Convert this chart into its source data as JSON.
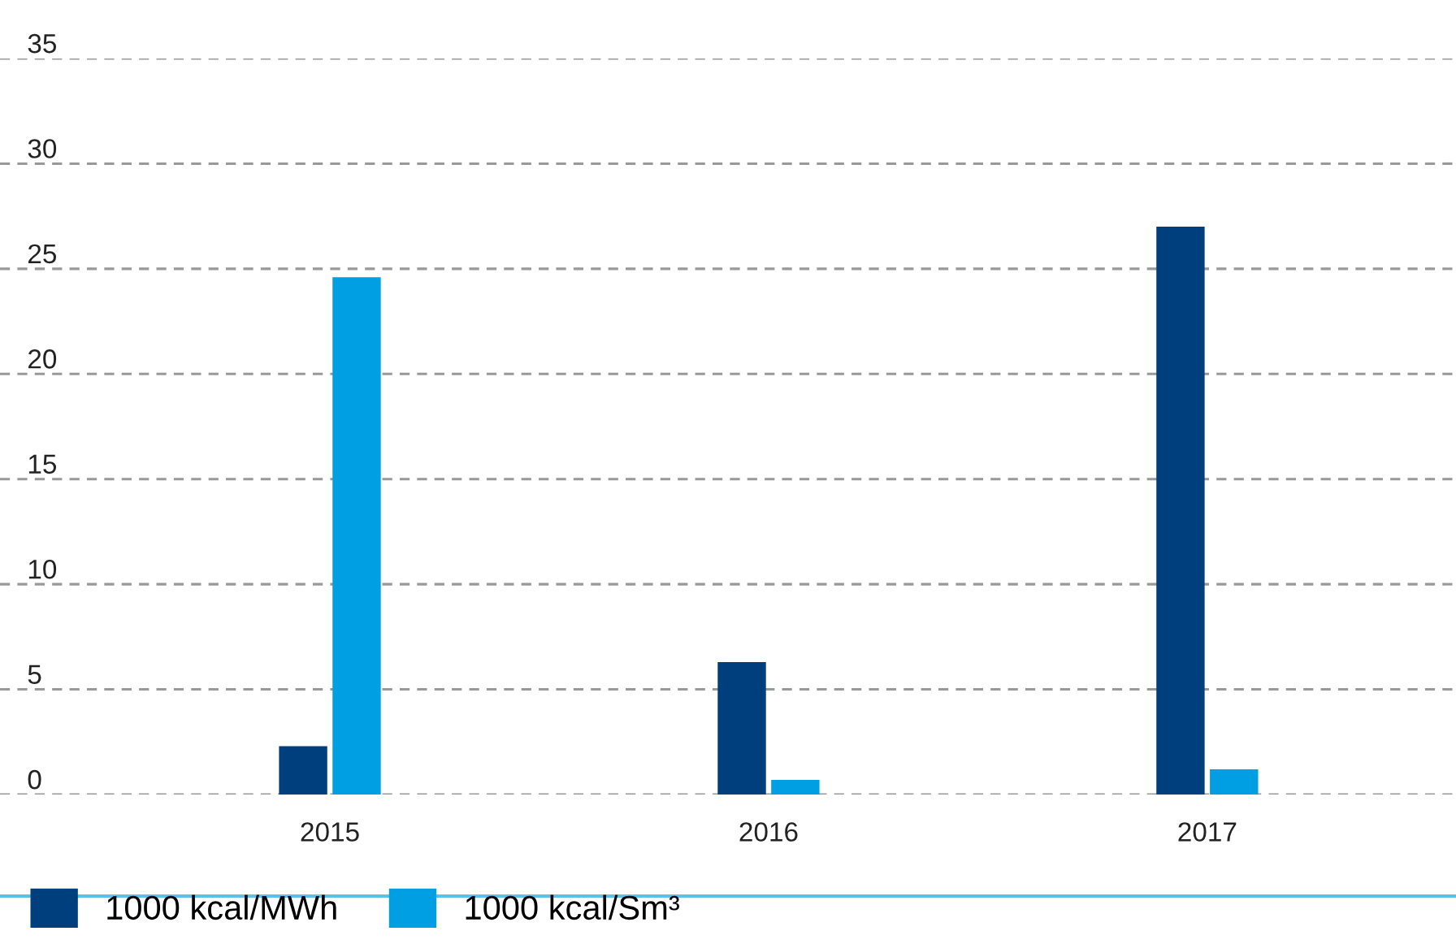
{
  "chart_data": {
    "type": "bar",
    "categories": [
      "2015",
      "2016",
      "2017"
    ],
    "series": [
      {
        "name": "1000 kcal/MWh",
        "color": "#003f7d",
        "values": [
          2.3,
          6.3,
          27.0
        ]
      },
      {
        "name": "1000 kcal/Sm³",
        "color": "#009fe3",
        "values": [
          24.6,
          0.7,
          1.2
        ]
      }
    ],
    "ylim": [
      0,
      35
    ],
    "yticks": [
      0,
      5,
      10,
      15,
      20,
      25,
      30,
      35
    ],
    "grid": "y",
    "legend": "bottom"
  }
}
